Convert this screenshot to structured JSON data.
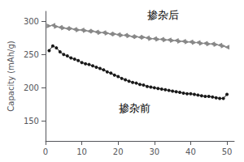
{
  "chart_data": {
    "type": "line",
    "y_label": "Capacity (mAh/g)",
    "x": [
      1,
      2,
      3,
      4,
      5,
      6,
      7,
      8,
      9,
      10,
      11,
      12,
      13,
      14,
      15,
      16,
      17,
      18,
      19,
      20,
      21,
      22,
      23,
      24,
      25,
      26,
      27,
      28,
      29,
      30,
      31,
      32,
      33,
      34,
      35,
      36,
      37,
      38,
      39,
      40,
      41,
      42,
      43,
      44,
      45,
      46,
      47,
      48,
      49,
      50
    ],
    "series": [
      {
        "color": "#888888",
        "marker": "triangle",
        "values": [
          293,
          294,
          292,
          291,
          290,
          289,
          289,
          288,
          287,
          287,
          286,
          285,
          285,
          284,
          283,
          283,
          282,
          281,
          281,
          280,
          279,
          279,
          278,
          277,
          277,
          276,
          276,
          275,
          274,
          274,
          273,
          273,
          272,
          272,
          271,
          271,
          270,
          270,
          269,
          269,
          268,
          268,
          267,
          267,
          266,
          266,
          265,
          264,
          263,
          261
        ]
      },
      {
        "color": "#1a1a1a",
        "marker": "circle",
        "values": [
          256,
          263,
          260,
          254,
          250,
          248,
          245,
          243,
          241,
          238,
          236,
          235,
          233,
          231,
          229,
          227,
          224,
          222,
          219,
          217,
          214,
          212,
          210,
          208,
          207,
          205,
          204,
          202,
          201,
          200,
          199,
          198,
          197,
          196,
          195,
          194,
          193,
          192,
          191,
          191,
          190,
          189,
          188,
          187,
          187,
          186,
          185,
          184,
          184,
          190
        ]
      }
    ],
    "annotations": [
      {
        "text": "掺杂后",
        "x": 27,
        "y": 296
      },
      {
        "text": "掺杂前",
        "x": 19,
        "y": 155
      }
    ],
    "xlim": [
      0,
      52
    ],
    "xticks": [
      0,
      10,
      20,
      30,
      40,
      50
    ],
    "ylim": [
      120,
      315
    ],
    "yticks": [
      150,
      200,
      250,
      300
    ],
    "grid": false,
    "legend": false
  }
}
